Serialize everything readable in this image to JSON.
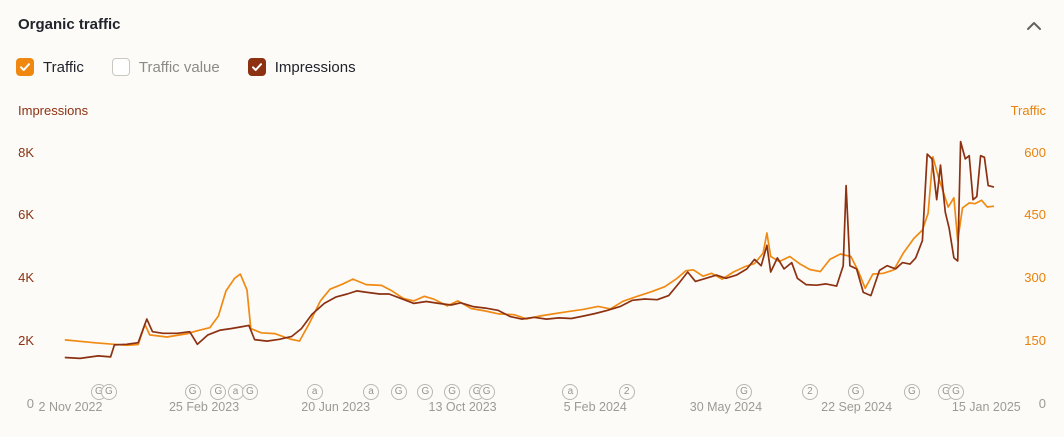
{
  "header": {
    "title": "Organic traffic",
    "collapse_icon": "chevron-up"
  },
  "legend": {
    "items": [
      {
        "label": "Traffic",
        "checked": true,
        "color": "#f0870f",
        "text_color": "#21242b"
      },
      {
        "label": "Traffic value",
        "checked": false,
        "color": "#ffffff",
        "text_color": "#8d8b85"
      },
      {
        "label": "Impressions",
        "checked": true,
        "color": "#8c3111",
        "text_color": "#21242b"
      }
    ]
  },
  "chart_data": {
    "type": "line",
    "grid": false,
    "legend_position": "top-left",
    "left_axis": {
      "label": "Impressions",
      "color": "#8c3111",
      "max": 8400,
      "ticks": [
        0,
        2000,
        4000,
        6000,
        8000
      ],
      "tick_labels": [
        "0",
        "2K",
        "4K",
        "6K",
        "8K"
      ]
    },
    "right_axis": {
      "label": "Traffic",
      "color": "#e8820c",
      "max": 630,
      "ticks": [
        0,
        150,
        300,
        450,
        600
      ],
      "tick_labels": [
        "0",
        "150",
        "300",
        "450",
        "600"
      ]
    },
    "zero_tick_color": "#9c9a92",
    "x_ticks": [
      {
        "t": 0.011,
        "label": "2 Nov 2022"
      },
      {
        "t": 0.151,
        "label": "25 Feb 2023"
      },
      {
        "t": 0.289,
        "label": "20 Jun 2023"
      },
      {
        "t": 0.422,
        "label": "13 Oct 2023"
      },
      {
        "t": 0.561,
        "label": "5 Feb 2024"
      },
      {
        "t": 0.698,
        "label": "30 May 2024"
      },
      {
        "t": 0.835,
        "label": "22 Sep 2024"
      },
      {
        "t": 0.971,
        "label": "15 Jan 2025"
      }
    ],
    "series": [
      {
        "name": "Traffic",
        "axis": "right",
        "color": "#f08a12",
        "points": [
          [
            0.005,
            153
          ],
          [
            0.037,
            146
          ],
          [
            0.07,
            140
          ],
          [
            0.082,
            142
          ],
          [
            0.089,
            190
          ],
          [
            0.094,
            165
          ],
          [
            0.112,
            160
          ],
          [
            0.134,
            168
          ],
          [
            0.144,
            175
          ],
          [
            0.157,
            182
          ],
          [
            0.166,
            210
          ],
          [
            0.174,
            270
          ],
          [
            0.183,
            300
          ],
          [
            0.189,
            310
          ],
          [
            0.196,
            272
          ],
          [
            0.2,
            180
          ],
          [
            0.211,
            170
          ],
          [
            0.225,
            168
          ],
          [
            0.241,
            155
          ],
          [
            0.251,
            150
          ],
          [
            0.262,
            195
          ],
          [
            0.273,
            246
          ],
          [
            0.283,
            274
          ],
          [
            0.296,
            286
          ],
          [
            0.307,
            298
          ],
          [
            0.321,
            285
          ],
          [
            0.337,
            283
          ],
          [
            0.348,
            270
          ],
          [
            0.36,
            252
          ],
          [
            0.371,
            246
          ],
          [
            0.382,
            257
          ],
          [
            0.392,
            250
          ],
          [
            0.406,
            234
          ],
          [
            0.417,
            246
          ],
          [
            0.431,
            228
          ],
          [
            0.446,
            222
          ],
          [
            0.46,
            215
          ],
          [
            0.476,
            213
          ],
          [
            0.489,
            203
          ],
          [
            0.503,
            210
          ],
          [
            0.517,
            215
          ],
          [
            0.531,
            220
          ],
          [
            0.549,
            226
          ],
          [
            0.564,
            233
          ],
          [
            0.577,
            227
          ],
          [
            0.59,
            245
          ],
          [
            0.604,
            256
          ],
          [
            0.62,
            268
          ],
          [
            0.634,
            280
          ],
          [
            0.647,
            300
          ],
          [
            0.656,
            318
          ],
          [
            0.664,
            320
          ],
          [
            0.674,
            305
          ],
          [
            0.683,
            312
          ],
          [
            0.694,
            298
          ],
          [
            0.706,
            315
          ],
          [
            0.718,
            328
          ],
          [
            0.728,
            335
          ],
          [
            0.737,
            360
          ],
          [
            0.741,
            408
          ],
          [
            0.745,
            352
          ],
          [
            0.754,
            340
          ],
          [
            0.765,
            352
          ],
          [
            0.775,
            335
          ],
          [
            0.786,
            321
          ],
          [
            0.797,
            316
          ],
          [
            0.807,
            345
          ],
          [
            0.818,
            358
          ],
          [
            0.829,
            352
          ],
          [
            0.837,
            316
          ],
          [
            0.844,
            276
          ],
          [
            0.852,
            310
          ],
          [
            0.863,
            312
          ],
          [
            0.874,
            320
          ],
          [
            0.884,
            360
          ],
          [
            0.895,
            395
          ],
          [
            0.904,
            415
          ],
          [
            0.91,
            455
          ],
          [
            0.915,
            590
          ],
          [
            0.921,
            540
          ],
          [
            0.926,
            505
          ],
          [
            0.931,
            470
          ],
          [
            0.937,
            492
          ],
          [
            0.941,
            390
          ],
          [
            0.946,
            468
          ],
          [
            0.953,
            480
          ],
          [
            0.959,
            478
          ],
          [
            0.966,
            486
          ],
          [
            0.972,
            470
          ],
          [
            0.979,
            472
          ]
        ]
      },
      {
        "name": "Impressions",
        "axis": "left",
        "color": "#8c3111",
        "points": [
          [
            0.005,
            1480
          ],
          [
            0.021,
            1450
          ],
          [
            0.04,
            1530
          ],
          [
            0.053,
            1500
          ],
          [
            0.057,
            1880
          ],
          [
            0.07,
            1900
          ],
          [
            0.082,
            1950
          ],
          [
            0.091,
            2700
          ],
          [
            0.097,
            2300
          ],
          [
            0.108,
            2250
          ],
          [
            0.123,
            2250
          ],
          [
            0.136,
            2300
          ],
          [
            0.144,
            1900
          ],
          [
            0.155,
            2200
          ],
          [
            0.168,
            2350
          ],
          [
            0.179,
            2400
          ],
          [
            0.189,
            2450
          ],
          [
            0.198,
            2500
          ],
          [
            0.204,
            2050
          ],
          [
            0.217,
            2000
          ],
          [
            0.23,
            2060
          ],
          [
            0.243,
            2150
          ],
          [
            0.253,
            2400
          ],
          [
            0.264,
            2850
          ],
          [
            0.277,
            3200
          ],
          [
            0.289,
            3400
          ],
          [
            0.301,
            3500
          ],
          [
            0.311,
            3600
          ],
          [
            0.322,
            3550
          ],
          [
            0.335,
            3500
          ],
          [
            0.345,
            3500
          ],
          [
            0.358,
            3350
          ],
          [
            0.371,
            3200
          ],
          [
            0.384,
            3260
          ],
          [
            0.397,
            3200
          ],
          [
            0.41,
            3150
          ],
          [
            0.42,
            3220
          ],
          [
            0.433,
            3100
          ],
          [
            0.446,
            3050
          ],
          [
            0.459,
            2980
          ],
          [
            0.472,
            2780
          ],
          [
            0.484,
            2700
          ],
          [
            0.497,
            2760
          ],
          [
            0.51,
            2700
          ],
          [
            0.523,
            2740
          ],
          [
            0.536,
            2720
          ],
          [
            0.549,
            2800
          ],
          [
            0.561,
            2880
          ],
          [
            0.574,
            2980
          ],
          [
            0.587,
            3100
          ],
          [
            0.6,
            3300
          ],
          [
            0.613,
            3340
          ],
          [
            0.626,
            3320
          ],
          [
            0.638,
            3450
          ],
          [
            0.649,
            3850
          ],
          [
            0.658,
            4200
          ],
          [
            0.666,
            3900
          ],
          [
            0.677,
            4000
          ],
          [
            0.688,
            4100
          ],
          [
            0.698,
            4000
          ],
          [
            0.709,
            4100
          ],
          [
            0.72,
            4300
          ],
          [
            0.728,
            4600
          ],
          [
            0.735,
            4400
          ],
          [
            0.741,
            5050
          ],
          [
            0.745,
            4200
          ],
          [
            0.752,
            4650
          ],
          [
            0.759,
            4300
          ],
          [
            0.767,
            4500
          ],
          [
            0.773,
            4000
          ],
          [
            0.782,
            3800
          ],
          [
            0.793,
            3780
          ],
          [
            0.803,
            3820
          ],
          [
            0.814,
            3750
          ],
          [
            0.821,
            4400
          ],
          [
            0.824,
            6950
          ],
          [
            0.828,
            4400
          ],
          [
            0.835,
            4300
          ],
          [
            0.842,
            3550
          ],
          [
            0.85,
            3450
          ],
          [
            0.859,
            4250
          ],
          [
            0.867,
            4400
          ],
          [
            0.876,
            4300
          ],
          [
            0.883,
            4500
          ],
          [
            0.891,
            4450
          ],
          [
            0.897,
            4650
          ],
          [
            0.904,
            5200
          ],
          [
            0.909,
            7950
          ],
          [
            0.914,
            7800
          ],
          [
            0.919,
            6500
          ],
          [
            0.923,
            7600
          ],
          [
            0.928,
            6100
          ],
          [
            0.932,
            5600
          ],
          [
            0.937,
            4650
          ],
          [
            0.941,
            4550
          ],
          [
            0.944,
            8350
          ],
          [
            0.949,
            7800
          ],
          [
            0.953,
            7900
          ],
          [
            0.957,
            6500
          ],
          [
            0.961,
            6600
          ],
          [
            0.965,
            7900
          ],
          [
            0.969,
            7850
          ],
          [
            0.973,
            6950
          ],
          [
            0.979,
            6900
          ]
        ]
      }
    ],
    "annotations": [
      {
        "t": 0.046,
        "labels": [
          "G",
          "G"
        ]
      },
      {
        "t": 0.139,
        "labels": [
          "G"
        ]
      },
      {
        "t": 0.166,
        "labels": [
          "G"
        ]
      },
      {
        "t": 0.184,
        "labels": [
          "a"
        ]
      },
      {
        "t": 0.199,
        "labels": [
          "G"
        ]
      },
      {
        "t": 0.267,
        "labels": [
          "a"
        ]
      },
      {
        "t": 0.326,
        "labels": [
          "a"
        ]
      },
      {
        "t": 0.355,
        "labels": [
          "G"
        ]
      },
      {
        "t": 0.383,
        "labels": [
          "G"
        ]
      },
      {
        "t": 0.411,
        "labels": [
          "G"
        ]
      },
      {
        "t": 0.442,
        "labels": [
          "G",
          "G"
        ]
      },
      {
        "t": 0.535,
        "labels": [
          "a"
        ]
      },
      {
        "t": 0.594,
        "labels": [
          "2"
        ]
      },
      {
        "t": 0.717,
        "labels": [
          "G"
        ]
      },
      {
        "t": 0.786,
        "labels": [
          "2"
        ]
      },
      {
        "t": 0.834,
        "labels": [
          "G"
        ]
      },
      {
        "t": 0.893,
        "labels": [
          "G"
        ]
      },
      {
        "t": 0.934,
        "labels": [
          "G",
          "G"
        ]
      }
    ]
  }
}
